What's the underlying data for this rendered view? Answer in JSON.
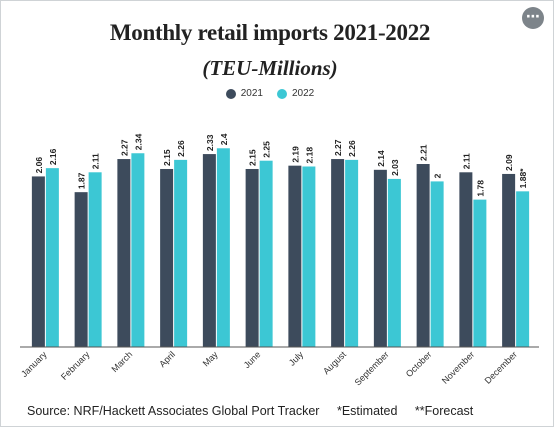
{
  "header": {
    "title": "Monthly retail imports 2021-2022",
    "subtitle": "(TEU-Millions)",
    "more_icon": "more-horizontal-icon"
  },
  "colors": {
    "series_2021": "#3d4b5c",
    "series_2022": "#3cc7d4",
    "axis": "#555555"
  },
  "footer": {
    "source": "Source: NRF/Hackett Associates Global Port Tracker",
    "estimated_note": "*Estimated",
    "forecast_note": "**Forecast"
  },
  "chart_data": {
    "type": "bar",
    "title": "Monthly retail imports 2021-2022",
    "subtitle": "(TEU-Millions)",
    "xlabel": "",
    "ylabel": "",
    "ylim": [
      0,
      2.5
    ],
    "legend_position": "top-center",
    "grid": false,
    "categories": [
      "January",
      "February",
      "March",
      "April",
      "May",
      "June",
      "July",
      "August",
      "September",
      "October",
      "November",
      "December"
    ],
    "series": [
      {
        "name": "2021",
        "values": [
          2.06,
          1.87,
          2.27,
          2.15,
          2.33,
          2.15,
          2.19,
          2.27,
          2.14,
          2.21,
          2.11,
          2.09
        ],
        "labels": [
          "2.06",
          "1.87",
          "2.27",
          "2.15",
          "2.33",
          "2.15",
          "2.19",
          "2.27",
          "2.14",
          "2.21",
          "2.11",
          "2.09"
        ]
      },
      {
        "name": "2022",
        "values": [
          2.16,
          2.11,
          2.34,
          2.26,
          2.4,
          2.25,
          2.18,
          2.26,
          2.03,
          2,
          1.78,
          1.88
        ],
        "labels": [
          "2.16",
          "2.11",
          "2.34",
          "2.26",
          "2.4",
          "2.25",
          "2.18",
          "2.26",
          "2.03",
          "2",
          "1.78",
          "1.88*"
        ]
      }
    ]
  }
}
